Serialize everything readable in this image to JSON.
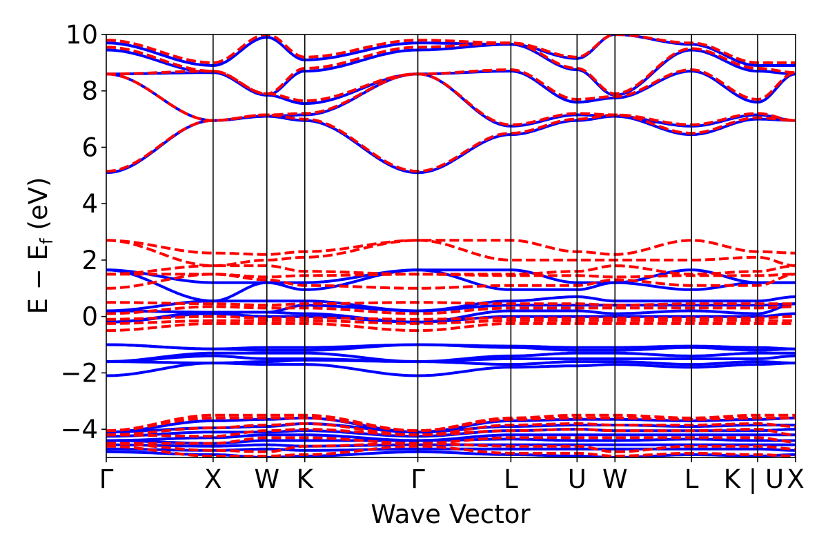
{
  "chart_data": {
    "type": "line",
    "title": "",
    "xlabel": "Wave Vector",
    "ylabel": "E − E",
    "ylabel_subscript": "f",
    "ylabel_unit": " (eV)",
    "ylim": [
      -5,
      10
    ],
    "y_ticks": [
      -4,
      -2,
      0,
      2,
      4,
      6,
      8,
      10
    ],
    "y_tick_labels": [
      "−4",
      "−2",
      "0",
      "2",
      "4",
      "6",
      "8",
      "10"
    ],
    "x_range": [
      0,
      10.0
    ],
    "k_path": [
      {
        "label": "Γ",
        "x": 0.0
      },
      {
        "label": "X",
        "x": 1.55
      },
      {
        "label": "W",
        "x": 2.33
      },
      {
        "label": "K",
        "x": 2.88
      },
      {
        "label": "Γ",
        "x": 4.52
      },
      {
        "label": "L",
        "x": 5.87
      },
      {
        "label": "U",
        "x": 6.83
      },
      {
        "label": "W",
        "x": 7.38
      },
      {
        "label": "L",
        "x": 8.49
      },
      {
        "label": "K | U",
        "x": 9.45
      },
      {
        "label": "X",
        "x": 10.0
      }
    ],
    "grid": false,
    "legend": "none",
    "series": [
      {
        "style": "solid",
        "color": "#0000ff",
        "bands": [
          [
            5.1,
            6.95,
            7.1,
            6.95,
            5.1,
            6.45,
            6.95,
            7.1,
            6.45,
            7.0,
            6.95
          ],
          [
            8.6,
            6.95,
            7.1,
            7.15,
            8.6,
            6.75,
            7.15,
            7.1,
            6.75,
            7.15,
            6.95
          ],
          [
            8.6,
            8.65,
            7.85,
            7.55,
            8.6,
            8.7,
            7.6,
            7.75,
            8.7,
            7.6,
            8.6
          ],
          [
            9.45,
            8.65,
            7.85,
            8.7,
            9.45,
            9.65,
            8.75,
            7.85,
            9.45,
            8.7,
            8.6
          ],
          [
            9.7,
            8.9,
            9.9,
            9.1,
            9.7,
            9.65,
            9.15,
            10.0,
            9.65,
            8.9,
            8.9
          ],
          [
            1.65,
            1.2,
            1.2,
            0.95,
            1.65,
            1.65,
            1.2,
            1.2,
            1.65,
            1.2,
            1.2
          ],
          [
            1.65,
            0.55,
            1.2,
            1.2,
            1.65,
            0.95,
            0.95,
            1.2,
            0.95,
            1.2,
            1.2
          ],
          [
            0.2,
            0.55,
            0.55,
            0.55,
            0.2,
            0.55,
            0.7,
            0.55,
            0.55,
            0.55,
            0.7
          ],
          [
            0.2,
            0.15,
            0.15,
            0.4,
            0.2,
            0.4,
            0.4,
            0.4,
            0.4,
            0.4,
            0.45
          ],
          [
            -0.2,
            0.15,
            0.15,
            0.1,
            -0.2,
            0.2,
            0.2,
            0.1,
            0.2,
            0.1,
            0.45
          ],
          [
            -0.2,
            0.1,
            0.0,
            0.0,
            -0.2,
            0.0,
            0.0,
            0.0,
            0.0,
            0.0,
            0.1
          ],
          [
            -1.0,
            -1.15,
            -1.1,
            -1.1,
            -1.0,
            -1.05,
            -1.1,
            -1.1,
            -1.05,
            -1.1,
            -1.15
          ],
          [
            -1.0,
            -1.15,
            -1.2,
            -1.2,
            -1.0,
            -1.1,
            -1.2,
            -1.2,
            -1.1,
            -1.2,
            -1.15
          ],
          [
            -1.6,
            -1.3,
            -1.3,
            -1.3,
            -1.6,
            -1.4,
            -1.3,
            -1.3,
            -1.4,
            -1.3,
            -1.3
          ],
          [
            -1.6,
            -1.4,
            -1.5,
            -1.5,
            -1.6,
            -1.5,
            -1.5,
            -1.5,
            -1.5,
            -1.5,
            -1.4
          ],
          [
            -1.6,
            -1.65,
            -1.6,
            -1.55,
            -1.6,
            -1.7,
            -1.6,
            -1.6,
            -1.7,
            -1.6,
            -1.65
          ],
          [
            -2.1,
            -1.65,
            -1.7,
            -1.7,
            -2.1,
            -1.8,
            -1.75,
            -1.7,
            -1.8,
            -1.7,
            -1.65
          ],
          [
            -4.1,
            -3.7,
            -3.65,
            -3.6,
            -4.1,
            -3.7,
            -3.65,
            -3.65,
            -3.7,
            -3.65,
            -3.6
          ],
          [
            -4.1,
            -3.95,
            -3.9,
            -3.8,
            -4.1,
            -3.9,
            -3.85,
            -3.85,
            -3.9,
            -3.85,
            -3.85
          ],
          [
            -4.25,
            -4.1,
            -4.1,
            -4.05,
            -4.25,
            -4.05,
            -4.0,
            -4.05,
            -4.05,
            -4.05,
            -4.0
          ],
          [
            -4.4,
            -4.3,
            -4.2,
            -4.2,
            -4.4,
            -4.2,
            -4.2,
            -4.2,
            -4.2,
            -4.2,
            -4.2
          ],
          [
            -4.4,
            -4.5,
            -4.4,
            -4.4,
            -4.4,
            -4.35,
            -4.4,
            -4.4,
            -4.35,
            -4.4,
            -4.4
          ],
          [
            -4.55,
            -4.6,
            -4.55,
            -4.6,
            -4.55,
            -4.55,
            -4.55,
            -4.55,
            -4.55,
            -4.55,
            -4.55
          ],
          [
            -4.7,
            -4.75,
            -4.7,
            -4.75,
            -4.7,
            -4.7,
            -4.7,
            -4.7,
            -4.7,
            -4.7,
            -4.75
          ],
          [
            -4.8,
            -4.9,
            -5.0,
            -4.95,
            -4.8,
            -4.9,
            -4.95,
            -5.0,
            -4.9,
            -4.95,
            -4.9
          ]
        ]
      },
      {
        "style": "dashed",
        "color": "#ff0000",
        "bands": [
          [
            5.15,
            6.95,
            7.15,
            7.0,
            5.15,
            6.5,
            7.0,
            7.15,
            6.5,
            7.05,
            6.95
          ],
          [
            8.6,
            6.95,
            7.15,
            7.2,
            8.6,
            6.8,
            7.2,
            7.15,
            6.8,
            7.2,
            6.95
          ],
          [
            8.6,
            8.7,
            7.9,
            7.65,
            8.6,
            8.75,
            7.7,
            7.8,
            8.75,
            7.7,
            8.65
          ],
          [
            9.55,
            8.7,
            7.9,
            8.8,
            9.55,
            9.7,
            8.8,
            7.9,
            9.5,
            8.8,
            8.65
          ],
          [
            9.8,
            9.0,
            10.0,
            9.2,
            9.8,
            9.7,
            9.2,
            10.0,
            9.7,
            9.0,
            9.0
          ],
          [
            2.7,
            2.25,
            2.2,
            2.3,
            2.7,
            2.7,
            2.3,
            2.2,
            2.7,
            2.3,
            2.25
          ],
          [
            2.7,
            1.8,
            2.0,
            2.1,
            2.7,
            2.0,
            2.0,
            2.0,
            2.0,
            2.1,
            1.8
          ],
          [
            1.5,
            1.8,
            1.8,
            1.6,
            1.5,
            1.5,
            1.6,
            1.8,
            1.5,
            1.6,
            1.8
          ],
          [
            1.5,
            1.5,
            1.4,
            1.45,
            1.5,
            1.45,
            1.45,
            1.4,
            1.45,
            1.45,
            1.5
          ],
          [
            1.0,
            1.5,
            1.3,
            1.1,
            1.0,
            1.1,
            1.1,
            1.3,
            1.1,
            1.1,
            1.5
          ],
          [
            0.5,
            0.45,
            0.4,
            0.45,
            0.5,
            0.45,
            0.45,
            0.4,
            0.45,
            0.45,
            0.45
          ],
          [
            0.1,
            0.35,
            0.3,
            0.3,
            0.1,
            0.3,
            0.3,
            0.3,
            0.3,
            0.3,
            0.35
          ],
          [
            -0.1,
            0.0,
            -0.05,
            -0.05,
            -0.1,
            -0.05,
            -0.05,
            -0.05,
            -0.05,
            -0.05,
            0.0
          ],
          [
            -0.25,
            -0.15,
            -0.15,
            -0.15,
            -0.25,
            -0.15,
            -0.15,
            -0.15,
            -0.15,
            -0.15,
            -0.15
          ],
          [
            -0.5,
            -0.25,
            -0.25,
            -0.25,
            -0.5,
            -0.25,
            -0.25,
            -0.25,
            -0.25,
            -0.25,
            -0.25
          ],
          [
            -4.05,
            -3.5,
            -3.5,
            -3.5,
            -4.05,
            -3.6,
            -3.5,
            -3.5,
            -3.6,
            -3.5,
            -3.5
          ],
          [
            -4.05,
            -3.6,
            -3.6,
            -3.6,
            -4.05,
            -3.65,
            -3.6,
            -3.6,
            -3.65,
            -3.6,
            -3.6
          ],
          [
            -4.2,
            -3.95,
            -3.85,
            -3.8,
            -4.2,
            -3.85,
            -3.8,
            -3.85,
            -3.85,
            -3.8,
            -3.9
          ],
          [
            -4.2,
            -4.25,
            -4.05,
            -4.0,
            -4.2,
            -4.05,
            -4.0,
            -4.05,
            -4.05,
            -4.0,
            -4.2
          ],
          [
            -4.5,
            -4.5,
            -4.3,
            -4.3,
            -4.5,
            -4.3,
            -4.3,
            -4.3,
            -4.3,
            -4.3,
            -4.45
          ],
          [
            -4.5,
            -4.75,
            -4.8,
            -4.6,
            -4.5,
            -4.6,
            -4.6,
            -4.8,
            -4.6,
            -4.6,
            -4.7
          ],
          [
            -4.6,
            -4.95,
            -4.95,
            -4.9,
            -4.6,
            -4.85,
            -4.85,
            -4.95,
            -4.85,
            -4.9,
            -4.95
          ]
        ]
      }
    ]
  }
}
